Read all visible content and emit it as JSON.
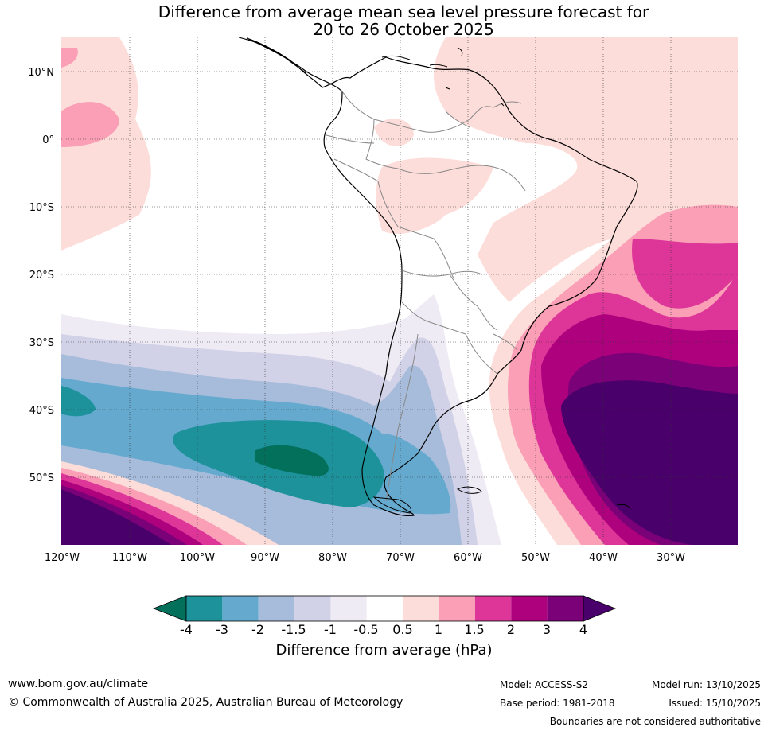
{
  "title": {
    "line1": "Difference from average mean sea level pressure forecast for",
    "line2": "20 to 26 October 2025"
  },
  "map": {
    "lat_labels": [
      "10°N",
      "0°",
      "10°S",
      "20°S",
      "30°S",
      "40°S",
      "50°S"
    ],
    "lon_labels": [
      "120°W",
      "110°W",
      "100°W",
      "90°W",
      "80°W",
      "70°W",
      "60°W",
      "50°W",
      "40°W",
      "30°W"
    ]
  },
  "colorbar": {
    "labels": [
      "-4",
      "-3",
      "-2",
      "-1.5",
      "-1",
      "-0.5",
      "0.5",
      "1",
      "1.5",
      "2",
      "3",
      "4"
    ],
    "colors": [
      "#03705b",
      "#1d929b",
      "#65a9cf",
      "#a6bcda",
      "#d1d1e7",
      "#efebf4",
      "#ffffff",
      "#fdddda",
      "#fa9fb6",
      "#dd3598",
      "#ae017e",
      "#7a0177",
      "#49006a"
    ],
    "title": "Difference from average (hPa)"
  },
  "footer": {
    "website": "www.bom.gov.au/climate",
    "copyright": "© Commonwealth of Australia 2025, Australian Bureau of Meteorology",
    "model": "Model: ACCESS-S2",
    "base_period": "Base period: 1981-2018",
    "model_run": "Model run: 13/10/2025",
    "issued": "Issued: 15/10/2025",
    "boundaries_note": "Boundaries are not considered authoritative"
  }
}
